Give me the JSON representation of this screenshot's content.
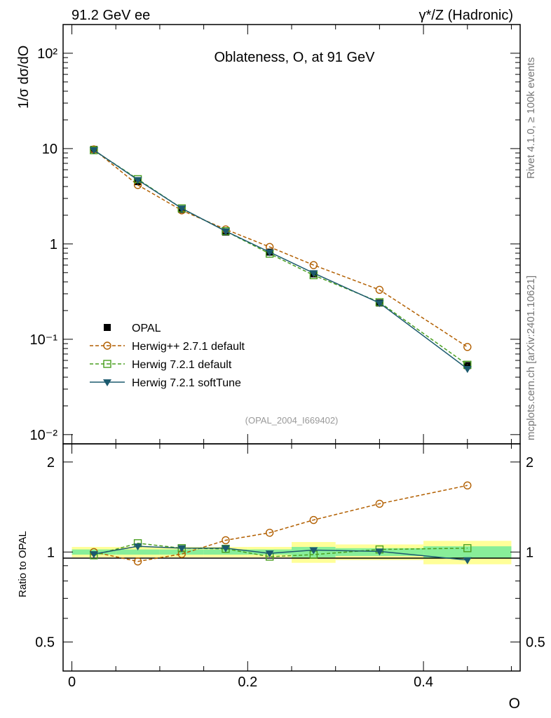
{
  "header": {
    "left": "91.2 GeV ee",
    "right": "γ*/Z (Hadronic)"
  },
  "side_labels": {
    "rivet": "Rivet 4.1.0, ≥ 100k events",
    "mcplots": "mcplots.cern.ch [arXiv:2401.10621]"
  },
  "colors": {
    "opal": "#000000",
    "herwigpp": "#b25f00",
    "herwig721": "#4a9f20",
    "softtune": "#1c5a6e",
    "band_yellow": "#ffff99",
    "band_green": "#88ee99"
  },
  "chart_data": [
    {
      "type": "line",
      "title": "Oblateness, O, at 91 GeV",
      "ylabel": "1/σ  dσ/dO",
      "xlabel": "O",
      "xlim": [
        -0.01,
        0.51
      ],
      "yscale": "log",
      "ylim": [
        0.008,
        200
      ],
      "y_tick_labels": [
        "10⁻²",
        "10⁻¹",
        "1",
        "10",
        "10²"
      ],
      "legend_position": "lower-left",
      "watermark": "(OPAL_2004_I669402)",
      "x": [
        0.025,
        0.075,
        0.125,
        0.175,
        0.225,
        0.275,
        0.35,
        0.45
      ],
      "series": [
        {
          "name": "OPAL",
          "marker": "filled-square",
          "values": [
            9.8,
            4.5,
            2.3,
            1.33,
            0.82,
            0.485,
            0.24,
            0.053
          ]
        },
        {
          "name": "Herwig++ 2.7.1 default",
          "marker": "open-circle",
          "dashed": true,
          "values": [
            9.8,
            4.15,
            2.25,
            1.42,
            0.93,
            0.6,
            0.33,
            0.083
          ]
        },
        {
          "name": "Herwig 7.2.1 default",
          "marker": "open-square",
          "dashed": true,
          "values": [
            9.6,
            4.78,
            2.36,
            1.36,
            0.79,
            0.47,
            0.245,
            0.054
          ]
        },
        {
          "name": "Herwig 7.2.1 softTune",
          "marker": "filled-triangle-down",
          "dashed": false,
          "values": [
            9.65,
            4.7,
            2.36,
            1.36,
            0.82,
            0.495,
            0.24,
            0.049
          ]
        }
      ]
    },
    {
      "type": "line",
      "title": "",
      "ylabel": "Ratio to OPAL",
      "xlabel": "O",
      "xlim": [
        -0.01,
        0.51
      ],
      "yscale": "log",
      "ylim": [
        0.4,
        2.3
      ],
      "y_ticks": [
        0.5,
        1,
        2
      ],
      "y_tick_labels": [
        "0.5",
        "1",
        "2"
      ],
      "x_ticks": [
        0,
        0.2,
        0.4
      ],
      "x_tick_labels": [
        "0",
        "0.2",
        "0.4"
      ],
      "x": [
        0.025,
        0.075,
        0.125,
        0.175,
        0.225,
        0.275,
        0.35,
        0.45
      ],
      "bins": [
        [
          0,
          0.05
        ],
        [
          0.05,
          0.1
        ],
        [
          0.1,
          0.15
        ],
        [
          0.15,
          0.2
        ],
        [
          0.2,
          0.25
        ],
        [
          0.25,
          0.3
        ],
        [
          0.3,
          0.4
        ],
        [
          0.4,
          0.5
        ]
      ],
      "band_yellow": [
        [
          0.96,
          1.04
        ],
        [
          0.96,
          1.04
        ],
        [
          0.96,
          1.04
        ],
        [
          0.96,
          1.04
        ],
        [
          0.96,
          1.04
        ],
        [
          0.92,
          1.08
        ],
        [
          0.94,
          1.06
        ],
        [
          0.91,
          1.09
        ]
      ],
      "band_green": [
        [
          0.98,
          1.02
        ],
        [
          0.98,
          1.02
        ],
        [
          0.98,
          1.02
        ],
        [
          0.98,
          1.02
        ],
        [
          0.98,
          1.02
        ],
        [
          0.96,
          1.04
        ],
        [
          0.97,
          1.03
        ],
        [
          0.955,
          1.045
        ]
      ],
      "series": [
        {
          "name": "Herwig++ 2.7.1 default",
          "marker": "open-circle",
          "dashed": true,
          "values": [
            1.0,
            0.93,
            0.985,
            1.095,
            1.16,
            1.28,
            1.45,
            1.67
          ]
        },
        {
          "name": "Herwig 7.2.1 default",
          "marker": "open-square",
          "dashed": true,
          "values": [
            0.975,
            1.07,
            1.03,
            1.025,
            0.965,
            0.98,
            1.02,
            1.03
          ]
        },
        {
          "name": "Herwig 7.2.1 softTune",
          "marker": "filled-triangle-down",
          "dashed": false,
          "values": [
            0.985,
            1.045,
            1.03,
            1.03,
            0.99,
            1.015,
            1.005,
            0.94
          ]
        }
      ]
    }
  ]
}
